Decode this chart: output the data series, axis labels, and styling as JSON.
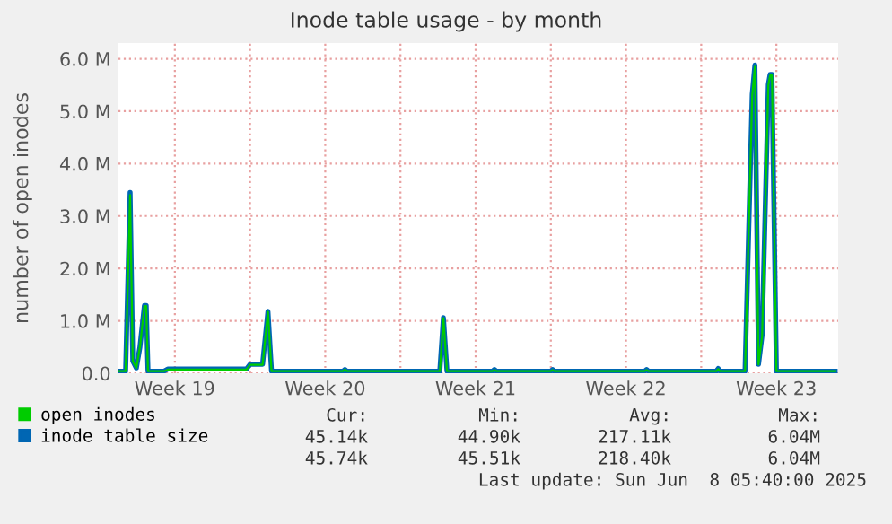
{
  "chart_data": {
    "type": "line",
    "title": "Inode table usage - by month",
    "ylabel": "number of open inodes",
    "x": [
      "2025-05-05T22:00",
      "2025-05-06T05:00",
      "2025-05-06T10:00",
      "2025-05-06T13:00",
      "2025-05-06T17:00",
      "2025-05-06T21:00",
      "2025-05-07T02:00",
      "2025-05-07T04:00",
      "2025-05-07T06:00",
      "2025-05-08T00:00",
      "2025-05-08T04:00",
      "2025-05-11T20:00",
      "2025-05-12T00:00",
      "2025-05-12T14:00",
      "2025-05-12T20:00",
      "2025-05-13T00:00",
      "2025-05-16T08:00",
      "2025-05-16T10:00",
      "2025-05-16T12:00",
      "2025-05-20T20:00",
      "2025-05-21T00:00",
      "2025-05-21T04:00",
      "2025-05-23T07:00",
      "2025-05-23T09:00",
      "2025-05-23T11:00",
      "2025-05-26T00:00",
      "2025-05-26T02:00",
      "2025-05-26T04:00",
      "2025-05-30T09:00",
      "2025-05-30T11:00",
      "2025-05-30T13:00",
      "2025-06-02T17:00",
      "2025-06-02T19:00",
      "2025-06-02T21:00",
      "2025-06-04T01:00",
      "2025-06-04T09:00",
      "2025-06-04T12:00",
      "2025-06-04T16:00",
      "2025-06-04T20:00",
      "2025-06-05T03:00",
      "2025-06-05T05:00",
      "2025-06-05T07:00",
      "2025-06-05T12:00",
      "2025-06-08T05:40"
    ],
    "series": [
      {
        "name": "open inodes",
        "color": "#00cc00",
        "values": [
          40000,
          40000,
          3400000,
          230000,
          100000,
          500000,
          1280000,
          1280000,
          40000,
          40000,
          70000,
          70000,
          160000,
          160000,
          1170000,
          40000,
          40000,
          70000,
          40000,
          40000,
          1050000,
          40000,
          40000,
          60000,
          40000,
          40000,
          60000,
          40000,
          40000,
          60000,
          40000,
          40000,
          80000,
          40000,
          40000,
          5300000,
          5850000,
          170000,
          700000,
          5500000,
          5680000,
          5680000,
          40000,
          40000
        ]
      },
      {
        "name": "inode table size",
        "color": "#0066b3",
        "values": [
          40000,
          40000,
          3450000,
          230000,
          100000,
          500000,
          1290000,
          1290000,
          40000,
          40000,
          80000,
          80000,
          170000,
          170000,
          1180000,
          40000,
          40000,
          70000,
          40000,
          40000,
          1060000,
          40000,
          40000,
          70000,
          40000,
          40000,
          70000,
          40000,
          40000,
          70000,
          40000,
          40000,
          90000,
          40000,
          40000,
          5320000,
          5880000,
          170000,
          720000,
          5510000,
          5700000,
          5700000,
          40000,
          40000
        ]
      }
    ],
    "xlim": [
      "2025-05-05T21:00",
      "2025-06-08T09:00"
    ],
    "xticks": [
      {
        "value": "2025-05-08T12:00",
        "label": "Week 19"
      },
      {
        "value": "2025-05-12",
        "label": null
      },
      {
        "value": "2025-05-15T12:00",
        "label": "Week 20"
      },
      {
        "value": "2025-05-19",
        "label": null
      },
      {
        "value": "2025-05-22T12:00",
        "label": "Week 21"
      },
      {
        "value": "2025-05-26",
        "label": null
      },
      {
        "value": "2025-05-29T12:00",
        "label": "Week 22"
      },
      {
        "value": "2025-06-02",
        "label": null
      },
      {
        "value": "2025-06-05T12:00",
        "label": "Week 23"
      }
    ],
    "ylim": [
      0,
      6300000
    ],
    "yticks": [
      {
        "value": 0,
        "label": "0.0"
      },
      {
        "value": 1000000,
        "label": "1.0 M"
      },
      {
        "value": 2000000,
        "label": "2.0 M"
      },
      {
        "value": 3000000,
        "label": "3.0 M"
      },
      {
        "value": 4000000,
        "label": "4.0 M"
      },
      {
        "value": 5000000,
        "label": "5.0 M"
      },
      {
        "value": 6000000,
        "label": "6.0 M"
      }
    ],
    "grid": true,
    "legend": "bottom left",
    "annotations": [
      "Cur:",
      "Min:",
      "Avg:",
      "Max:",
      "45.14k",
      "44.90k",
      "217.11k",
      "6.04M",
      "45.74k",
      "45.51k",
      "218.40k",
      "6.04M",
      "Last update: Sun Jun  8 05:40:00 2025"
    ]
  }
}
